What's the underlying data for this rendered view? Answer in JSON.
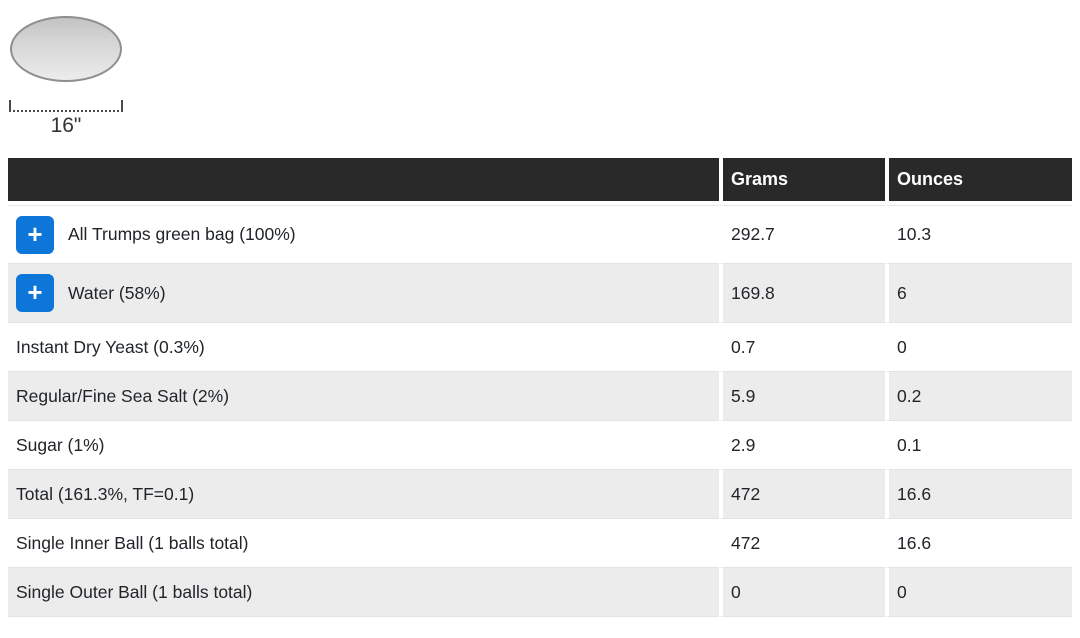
{
  "pan": {
    "size_label": "16\""
  },
  "table": {
    "columns": {
      "ingredient": "",
      "grams": "Grams",
      "ounces": "Ounces"
    },
    "add_button_glyph": "+",
    "rows": [
      {
        "label": "All Trumps green bag (100%)",
        "grams": "292.7",
        "ounces": "10.3",
        "has_add_button": true
      },
      {
        "label": "Water (58%)",
        "grams": "169.8",
        "ounces": "6",
        "has_add_button": true
      },
      {
        "label": "Instant Dry Yeast (0.3%)",
        "grams": "0.7",
        "ounces": "0",
        "has_add_button": false
      },
      {
        "label": "Regular/Fine Sea Salt (2%)",
        "grams": "5.9",
        "ounces": "0.2",
        "has_add_button": false
      },
      {
        "label": "Sugar (1%)",
        "grams": "2.9",
        "ounces": "0.1",
        "has_add_button": false
      },
      {
        "label": "Total (161.3%, TF=0.1)",
        "grams": "472",
        "ounces": "16.6",
        "has_add_button": false
      },
      {
        "label": "Single Inner Ball (1 balls total)",
        "grams": "472",
        "ounces": "16.6",
        "has_add_button": false
      },
      {
        "label": "Single Outer Ball (1 balls total)",
        "grams": "0",
        "ounces": "0",
        "has_add_button": false
      }
    ]
  },
  "colors": {
    "accent_blue": "#0d76d8",
    "header_bg": "#292929",
    "header_text": "#ffffff",
    "stripe_gray": "#ececec",
    "body_text": "#212529"
  }
}
